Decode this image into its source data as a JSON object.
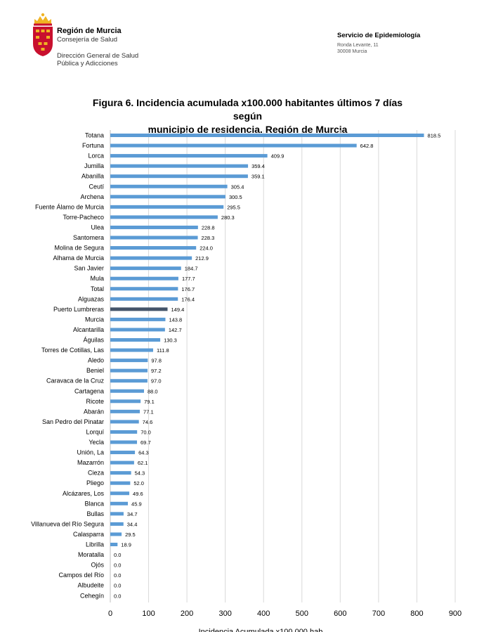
{
  "header": {
    "org_name": "Región de Murcia",
    "org_dept": "Consejería de Salud",
    "sub_dept_line1": "Dirección General de Salud",
    "sub_dept_line2": "Pública y Adicciones",
    "service_name": "Servicio de Epidemiología",
    "address_line1": "Ronda Levante, 11",
    "address_line2": "30008 Murcia"
  },
  "colors": {
    "bar": "#5b9bd5",
    "highlight_bar": "#44546a",
    "grid": "#d9d9d9",
    "logo_red": "#c8102e",
    "logo_gold": "#f0b323"
  },
  "chart_data": {
    "type": "bar",
    "orientation": "horizontal",
    "title_line1": "Figura 6. Incidencia acumulada  x100.000 habitantes últimos 7 días según",
    "title_line2": "municipio de residencia. Región de Murcia",
    "xlabel": "Incidencia Acumulada x100.000 hab.",
    "xlim": [
      0,
      900
    ],
    "xticks": [
      0,
      100,
      200,
      300,
      400,
      500,
      600,
      700,
      800,
      900
    ],
    "grid": "vertical",
    "highlight": "Puerto Lumbreras",
    "categories": [
      "Totana",
      "Fortuna",
      "Lorca",
      "Jumilla",
      "Abanilla",
      "Ceutí",
      "Archena",
      "Fuente Álamo de Murcia",
      "Torre-Pacheco",
      "Ulea",
      "Santomera",
      "Molina de Segura",
      "Alhama de Murcia",
      "San Javier",
      "Mula",
      "Total",
      "Alguazas",
      "Puerto Lumbreras",
      "Murcia",
      "Alcantarilla",
      "Águilas",
      "Torres de Cotillas, Las",
      "Aledo",
      "Beniel",
      "Caravaca de la Cruz",
      "Cartagena",
      "Ricote",
      "Abarán",
      "San Pedro del Pinatar",
      "Lorquí",
      "Yecla",
      "Unión, La",
      "Mazarrón",
      "Cieza",
      "Pliego",
      "Alcázares, Los",
      "Blanca",
      "Bullas",
      "Villanueva del Río Segura",
      "Calasparra",
      "Librilla",
      "Moratalla",
      "Ojós",
      "Campos del Río",
      "Albudeite",
      "Cehegín"
    ],
    "values": [
      818.5,
      642.8,
      409.9,
      359.4,
      359.1,
      305.4,
      300.5,
      295.5,
      280.3,
      228.8,
      228.3,
      224.0,
      212.9,
      184.7,
      177.7,
      176.7,
      176.4,
      149.4,
      143.8,
      142.7,
      130.3,
      111.8,
      97.8,
      97.2,
      97.0,
      88.0,
      79.1,
      77.1,
      74.6,
      70.0,
      69.7,
      64.3,
      62.1,
      54.3,
      52.0,
      49.6,
      45.9,
      34.7,
      34.4,
      29.5,
      18.9,
      0.0,
      0.0,
      0.0,
      0.0,
      0.0
    ],
    "value_labels": [
      "818.5",
      "642.8",
      "409.9",
      "359.4",
      "359.1",
      "305.4",
      "300.5",
      "295.5",
      "280.3",
      "228.8",
      "228.3",
      "224.0",
      "212.9",
      "184.7",
      "177.7",
      "176.7",
      "176.4",
      "149.4",
      "143.8",
      "142.7",
      "130.3",
      "111.8",
      "97.8",
      "97.2",
      "97.0",
      "88.0",
      "79.1",
      "77.1",
      "74.6",
      "70.0",
      "69.7",
      "64.3",
      "62.1",
      "54.3",
      "52.0",
      "49.6",
      "45.9",
      "34.7",
      "34.4",
      "29.5",
      "18.9",
      "0.0",
      "0.0",
      "0.0",
      "0.0",
      "0.0"
    ]
  }
}
